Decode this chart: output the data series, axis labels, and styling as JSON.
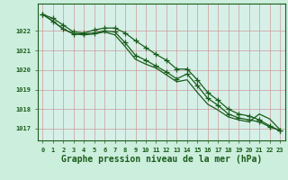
{
  "xlabel": "Graphe pression niveau de la mer (hPa)",
  "x": [
    0,
    1,
    2,
    3,
    4,
    5,
    6,
    7,
    8,
    9,
    10,
    11,
    12,
    13,
    14,
    15,
    16,
    17,
    18,
    19,
    20,
    21,
    22,
    23
  ],
  "line1": [
    1022.85,
    1022.65,
    1022.3,
    1021.95,
    1021.9,
    1022.05,
    1022.15,
    1022.15,
    1021.9,
    1021.5,
    1021.15,
    1020.8,
    1020.5,
    1020.05,
    1020.05,
    1019.5,
    1018.85,
    1018.45,
    1018.0,
    1017.75,
    1017.65,
    1017.45,
    1017.15,
    1016.9
  ],
  "line2": [
    1022.85,
    1022.5,
    1022.1,
    1021.85,
    1021.85,
    1021.9,
    1022.0,
    1021.95,
    1021.4,
    1020.75,
    1020.5,
    1020.2,
    1019.9,
    1019.55,
    1019.8,
    1019.2,
    1018.55,
    1018.2,
    1017.75,
    1017.55,
    1017.45,
    1017.35,
    1017.1,
    1016.9
  ],
  "line3": [
    1022.85,
    1022.5,
    1022.1,
    1021.85,
    1021.8,
    1021.85,
    1021.95,
    1021.8,
    1021.2,
    1020.55,
    1020.3,
    1020.1,
    1019.75,
    1019.4,
    1019.5,
    1018.85,
    1018.25,
    1017.95,
    1017.6,
    1017.45,
    1017.35,
    1017.75,
    1017.5,
    1016.95
  ],
  "ylim_min": 1016.4,
  "ylim_max": 1023.4,
  "yticks": [
    1017,
    1018,
    1019,
    1020,
    1021,
    1022
  ],
  "bg_color": "#cceedd",
  "plot_bg_color": "#d6f0e8",
  "line_color": "#1a5c1a",
  "grid_color_major": "#cc9999",
  "grid_color_minor": "#ddbbbb",
  "xlabel_fontsize": 7,
  "tick_fontsize": 5,
  "marker": "+",
  "marker_size": 4,
  "lw": 0.9
}
